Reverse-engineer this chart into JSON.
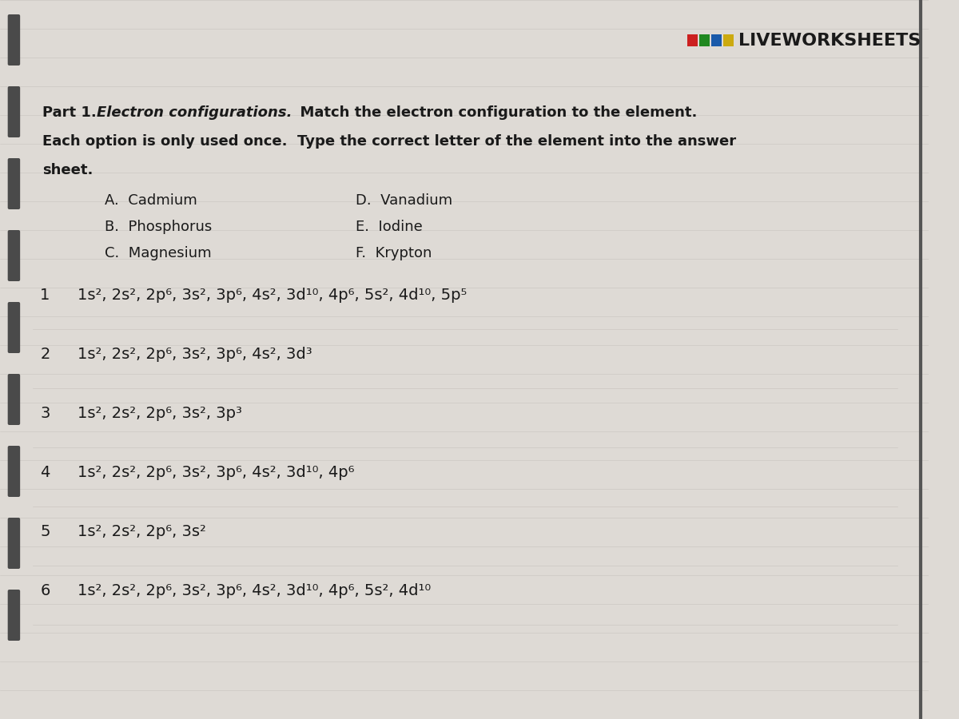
{
  "page_bg": "#dedad5",
  "title_part": "Part 1.  ",
  "title_bold_italic": "Electron configurations.",
  "title_rest": "  Match the electron configuration to the element.",
  "subtitle_line2": "Each option is only used once.  Type the correct letter of the element into the answer",
  "subtitle_line3": "sheet.",
  "options_left": [
    "A.  Cadmium",
    "B.  Phosphorus",
    "C.  Magnesium"
  ],
  "options_right": [
    "D.  Vanadium",
    "E.  Iodine",
    "F.  Krypton"
  ],
  "numbered_items": [
    {
      "num": "1",
      "config": "1s², 2s², 2p⁶, 3s², 3p⁶, 4s², 3d¹⁰, 4p⁶, 5s², 4d¹⁰, 5p⁵"
    },
    {
      "num": "2",
      "config": "1s², 2s², 2p⁶, 3s², 3p⁶, 4s², 3d³"
    },
    {
      "num": "3",
      "config": "1s², 2s², 2p⁶, 3s², 3p³"
    },
    {
      "num": "4",
      "config": "1s², 2s², 2p⁶, 3s², 3p⁶, 4s², 3d¹⁰, 4p⁶"
    },
    {
      "num": "5",
      "config": "1s², 2s², 2p⁶, 3s²"
    },
    {
      "num": "6",
      "config": "1s², 2s², 2p⁶, 3s², 3p⁶, 4s², 3d¹⁰, 4p⁶, 5s², 4d¹⁰"
    }
  ],
  "watermark_text": "LIVEWORKSHEETS",
  "watermark_color": "#1a1a1a",
  "left_bar_color": "#4a4a4a",
  "text_color": "#1a1a1a",
  "font_size_body": 13,
  "font_size_config": 14,
  "font_size_watermark": 16,
  "sq_colors": [
    "#cc2020",
    "#208820",
    "#1a5aaa",
    "#ccaa10"
  ],
  "right_border_color": "#555555"
}
